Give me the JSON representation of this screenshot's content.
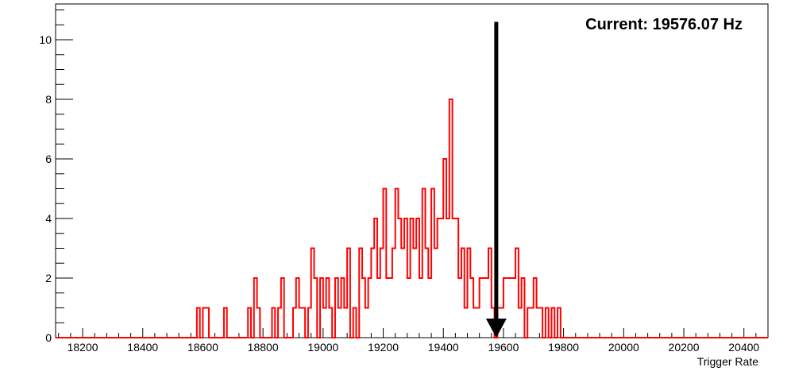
{
  "chart_data": {
    "type": "histogram",
    "title": "",
    "xlabel": "Trigger Rate",
    "ylabel": "",
    "xlim": [
      18110,
      20480
    ],
    "ylim": [
      0,
      11.2
    ],
    "grid": false,
    "legend": "none",
    "bin_width": 10,
    "x_ticks": [
      18200,
      18400,
      18600,
      18800,
      19000,
      19200,
      19400,
      19600,
      19800,
      20000,
      20200,
      20400
    ],
    "y_ticks": [
      0,
      2,
      4,
      6,
      8,
      10
    ],
    "series": [
      {
        "color": "#ff0000",
        "bins_x": [
          18580,
          18590,
          18600,
          18610,
          18620,
          18630,
          18670,
          18750,
          18770,
          18780,
          18800,
          18830,
          18850,
          18860,
          18870,
          18900,
          18910,
          18920,
          18930,
          18940,
          18950,
          18960,
          18970,
          18980,
          18990,
          19000,
          19010,
          19020,
          19030,
          19040,
          19050,
          19060,
          19070,
          19080,
          19090,
          19100,
          19110,
          19120,
          19130,
          19140,
          19150,
          19160,
          19170,
          19180,
          19190,
          19200,
          19210,
          19220,
          19230,
          19240,
          19250,
          19260,
          19270,
          19280,
          19290,
          19300,
          19310,
          19320,
          19330,
          19340,
          19350,
          19360,
          19370,
          19380,
          19390,
          19400,
          19410,
          19420,
          19430,
          19440,
          19450,
          19460,
          19470,
          19480,
          19490,
          19500,
          19510,
          19520,
          19530,
          19540,
          19550,
          19560,
          19570,
          19580,
          19590,
          19600,
          19610,
          19620,
          19630,
          19640,
          19650,
          19660,
          19670,
          19680,
          19690,
          19700,
          19710,
          19720,
          19730,
          19740,
          19750,
          19760,
          19770,
          19780
        ],
        "counts": [
          1,
          0,
          1,
          1,
          0,
          0,
          1,
          1,
          2,
          1,
          0,
          1,
          1,
          2,
          0,
          1,
          2,
          1,
          1,
          0,
          1,
          3,
          2,
          0,
          2,
          1,
          2,
          1,
          0,
          2,
          1,
          2,
          1,
          3,
          0,
          1,
          0,
          3,
          2,
          1,
          2,
          3,
          4,
          2,
          3,
          5,
          2,
          2,
          3,
          5,
          4,
          3,
          4,
          2,
          4,
          3,
          4,
          2,
          5,
          3,
          2,
          5,
          3,
          4,
          4,
          6,
          4,
          8,
          4,
          4,
          2,
          3,
          1,
          3,
          2,
          1,
          1,
          2,
          2,
          2,
          3,
          1,
          0,
          1,
          1,
          2,
          2,
          2,
          2,
          3,
          1,
          2,
          0,
          1,
          1,
          2,
          1,
          1,
          0,
          1,
          0,
          1,
          0,
          1
        ]
      }
    ],
    "annotations": [
      {
        "text": "Current: 19576.07 Hz",
        "position": "top-right"
      }
    ],
    "marker": {
      "x": 19576.07,
      "y_top": 10.6,
      "style": "arrow-down",
      "color": "#000000"
    }
  }
}
